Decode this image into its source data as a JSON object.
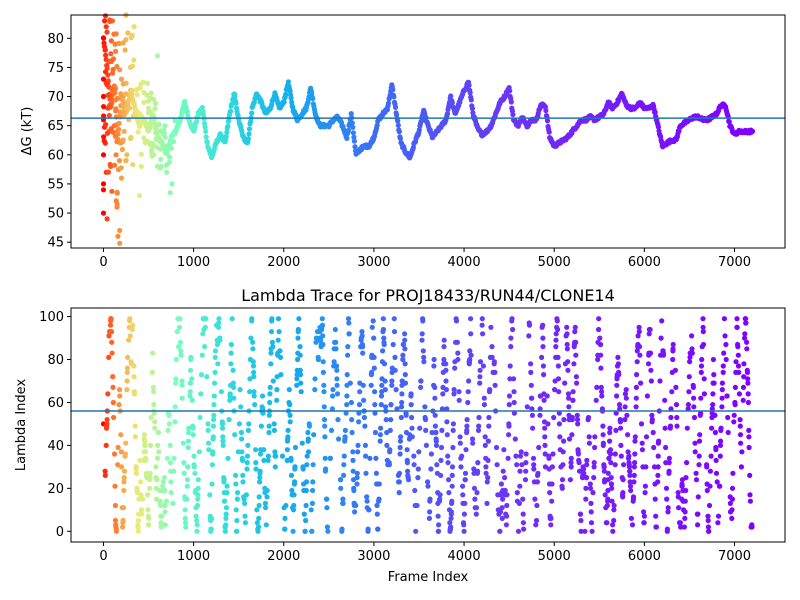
{
  "chart_data": [
    {
      "type": "scatter",
      "title": "",
      "xlabel": "",
      "ylabel": "ΔG (kT)",
      "xlim": [
        -360,
        7560
      ],
      "ylim": [
        44,
        84
      ],
      "xticks": [
        0,
        1000,
        2000,
        3000,
        4000,
        5000,
        6000,
        7000
      ],
      "yticks": [
        45,
        50,
        55,
        60,
        65,
        70,
        75,
        80
      ],
      "hline": 66.3,
      "hline_color": "#1f77b4",
      "colormap": "rainbow (early frames red, late frames purple)",
      "x_max": 7200,
      "trace": [
        [
          0,
          80
        ],
        [
          40,
          75
        ],
        [
          80,
          68
        ],
        [
          120,
          72
        ],
        [
          160,
          63
        ],
        [
          200,
          70
        ],
        [
          250,
          67
        ],
        [
          300,
          71
        ],
        [
          350,
          68
        ],
        [
          400,
          65
        ],
        [
          450,
          66
        ],
        [
          500,
          64
        ],
        [
          550,
          67
        ],
        [
          600,
          63
        ],
        [
          650,
          62
        ],
        [
          700,
          60
        ],
        [
          750,
          63
        ],
        [
          800,
          64
        ],
        [
          850,
          66
        ],
        [
          900,
          69
        ],
        [
          950,
          66
        ],
        [
          1000,
          64
        ],
        [
          1050,
          67
        ],
        [
          1100,
          68
        ],
        [
          1150,
          62
        ],
        [
          1200,
          59.5
        ],
        [
          1250,
          62
        ],
        [
          1300,
          63.5
        ],
        [
          1350,
          62
        ],
        [
          1400,
          67
        ],
        [
          1450,
          70.5
        ],
        [
          1500,
          66
        ],
        [
          1550,
          63
        ],
        [
          1600,
          62
        ],
        [
          1650,
          68
        ],
        [
          1700,
          70.5
        ],
        [
          1750,
          69
        ],
        [
          1800,
          67
        ],
        [
          1850,
          68
        ],
        [
          1900,
          70.5
        ],
        [
          1950,
          68
        ],
        [
          2000,
          69
        ],
        [
          2050,
          72.5
        ],
        [
          2100,
          68
        ],
        [
          2150,
          66
        ],
        [
          2200,
          67
        ],
        [
          2250,
          68
        ],
        [
          2300,
          71.5
        ],
        [
          2350,
          67
        ],
        [
          2400,
          65
        ],
        [
          2450,
          65
        ],
        [
          2500,
          65
        ],
        [
          2550,
          66
        ],
        [
          2600,
          66.5
        ],
        [
          2650,
          65
        ],
        [
          2700,
          63
        ],
        [
          2750,
          67
        ],
        [
          2800,
          60
        ],
        [
          2850,
          61
        ],
        [
          2900,
          61.5
        ],
        [
          2950,
          61.5
        ],
        [
          3000,
          63
        ],
        [
          3050,
          66
        ],
        [
          3100,
          67
        ],
        [
          3150,
          68
        ],
        [
          3200,
          72
        ],
        [
          3250,
          67
        ],
        [
          3300,
          62
        ],
        [
          3350,
          60.5
        ],
        [
          3400,
          59.5
        ],
        [
          3450,
          62
        ],
        [
          3500,
          64
        ],
        [
          3550,
          67.5
        ],
        [
          3600,
          65
        ],
        [
          3650,
          63
        ],
        [
          3700,
          64
        ],
        [
          3750,
          65
        ],
        [
          3800,
          66
        ],
        [
          3850,
          70
        ],
        [
          3900,
          67
        ],
        [
          3950,
          69
        ],
        [
          4000,
          71
        ],
        [
          4050,
          72.5
        ],
        [
          4100,
          67
        ],
        [
          4150,
          64.5
        ],
        [
          4200,
          63.5
        ],
        [
          4250,
          64
        ],
        [
          4300,
          65
        ],
        [
          4350,
          67
        ],
        [
          4400,
          69
        ],
        [
          4450,
          70
        ],
        [
          4500,
          71.5
        ],
        [
          4550,
          66
        ],
        [
          4600,
          65
        ],
        [
          4650,
          66.5
        ],
        [
          4700,
          65
        ],
        [
          4750,
          66
        ],
        [
          4800,
          66
        ],
        [
          4850,
          68.5
        ],
        [
          4900,
          68.5
        ],
        [
          4950,
          63
        ],
        [
          5000,
          61.5
        ],
        [
          5050,
          62
        ],
        [
          5100,
          62.5
        ],
        [
          5150,
          63
        ],
        [
          5200,
          64
        ],
        [
          5250,
          65
        ],
        [
          5300,
          66
        ],
        [
          5350,
          66
        ],
        [
          5400,
          66.5
        ],
        [
          5450,
          66
        ],
        [
          5500,
          66.5
        ],
        [
          5550,
          67
        ],
        [
          5600,
          69
        ],
        [
          5650,
          68
        ],
        [
          5700,
          69
        ],
        [
          5750,
          70.5
        ],
        [
          5800,
          68.5
        ],
        [
          5850,
          68
        ],
        [
          5900,
          68
        ],
        [
          5950,
          69
        ],
        [
          6000,
          68
        ],
        [
          6050,
          68
        ],
        [
          6100,
          68.5
        ],
        [
          6150,
          65
        ],
        [
          6200,
          61.5
        ],
        [
          6250,
          62
        ],
        [
          6300,
          62.5
        ],
        [
          6350,
          62.5
        ],
        [
          6400,
          65
        ],
        [
          6450,
          65.5
        ],
        [
          6500,
          66
        ],
        [
          6550,
          66.5
        ],
        [
          6600,
          66.5
        ],
        [
          6650,
          66
        ],
        [
          6700,
          66
        ],
        [
          6750,
          66.5
        ],
        [
          6800,
          67
        ],
        [
          6850,
          68.5
        ],
        [
          6900,
          68.5
        ],
        [
          6950,
          65
        ],
        [
          7000,
          63.5
        ],
        [
          7050,
          64
        ],
        [
          7100,
          64
        ],
        [
          7150,
          64
        ],
        [
          7200,
          64
        ]
      ],
      "early_scatter": [
        [
          0,
          80
        ],
        [
          0,
          70
        ],
        [
          0,
          60
        ],
        [
          0,
          55
        ],
        [
          0,
          50
        ],
        [
          0,
          54
        ],
        [
          0,
          73
        ],
        [
          0,
          66
        ],
        [
          20,
          78
        ],
        [
          20,
          62
        ],
        [
          30,
          82
        ],
        [
          30,
          57
        ],
        [
          40,
          72
        ],
        [
          40,
          49
        ],
        [
          50,
          68
        ],
        [
          60,
          76
        ],
        [
          60,
          64
        ],
        [
          80,
          70
        ],
        [
          80,
          58
        ],
        [
          100,
          83
        ],
        [
          100,
          74
        ],
        [
          120,
          65
        ],
        [
          130,
          79
        ],
        [
          140,
          60
        ],
        [
          150,
          51
        ],
        [
          160,
          46
        ],
        [
          180,
          47
        ],
        [
          180,
          44.8
        ],
        [
          200,
          73
        ],
        [
          200,
          56
        ],
        [
          220,
          70
        ],
        [
          240,
          78
        ],
        [
          250,
          84
        ],
        [
          260,
          60
        ],
        [
          280,
          66
        ],
        [
          300,
          75
        ],
        [
          320,
          71
        ],
        [
          340,
          82
        ],
        [
          350,
          67
        ],
        [
          380,
          66
        ],
        [
          400,
          53
        ],
        [
          420,
          58
        ],
        [
          450,
          69
        ],
        [
          500,
          68
        ],
        [
          520,
          62
        ],
        [
          560,
          60
        ],
        [
          600,
          77
        ],
        [
          640,
          58
        ],
        [
          700,
          57
        ],
        [
          740,
          53.5
        ],
        [
          760,
          55
        ]
      ]
    },
    {
      "type": "scatter",
      "title": "Lambda Trace for PROJ18433/RUN44/CLONE14",
      "xlabel": "Frame Index",
      "ylabel": "Lambda Index",
      "xlim": [
        -360,
        7560
      ],
      "ylim": [
        -5,
        104
      ],
      "xticks": [
        0,
        1000,
        2000,
        3000,
        4000,
        5000,
        6000,
        7000
      ],
      "yticks": [
        0,
        20,
        40,
        60,
        80,
        100
      ],
      "hline": 56,
      "hline_color": "#1f77b4",
      "colormap": "rainbow (early frames red, late frames purple)",
      "x_max": 7200,
      "lambda_min": 0,
      "lambda_max": 99
    }
  ]
}
